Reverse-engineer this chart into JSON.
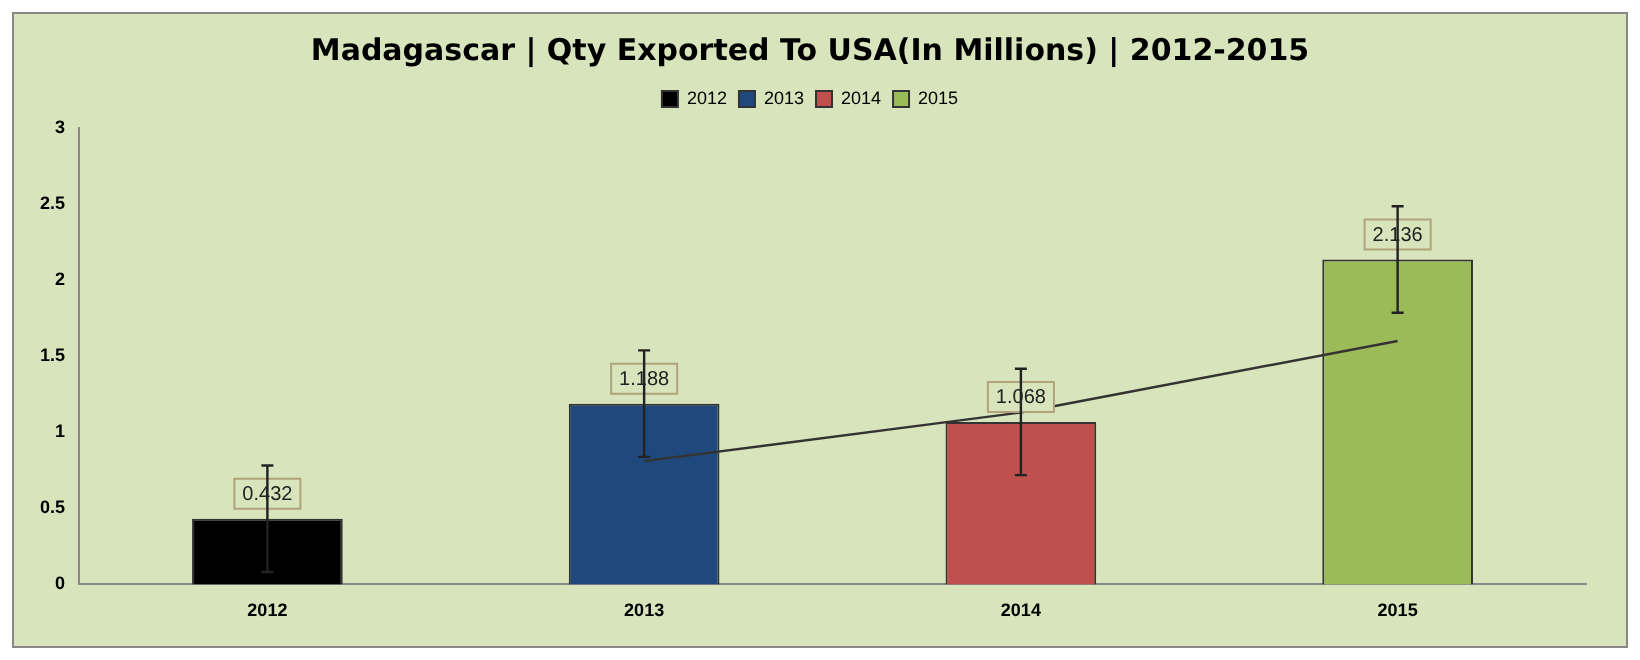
{
  "chart_data": {
    "type": "bar",
    "title": "Madagascar | Qty Exported To USA(In Millions) | 2012-2015",
    "categories": [
      "2012",
      "2013",
      "2014",
      "2015"
    ],
    "series": [
      {
        "name": "2012",
        "color": "#000000",
        "values": [
          0.432,
          null,
          null,
          null
        ],
        "errors": [
          0.35,
          null,
          null,
          null
        ],
        "value_labels": [
          "0.432",
          null,
          null,
          null
        ]
      },
      {
        "name": "2013",
        "color": "#1f497d",
        "values": [
          null,
          1.188,
          null,
          null
        ],
        "errors": [
          null,
          0.35,
          null,
          null
        ],
        "value_labels": [
          null,
          "1.188",
          null,
          null
        ]
      },
      {
        "name": "2014",
        "color": "#c0504d",
        "values": [
          null,
          null,
          1.068,
          null
        ],
        "errors": [
          null,
          null,
          0.35,
          null
        ],
        "value_labels": [
          null,
          null,
          "1.068",
          null
        ]
      },
      {
        "name": "2015",
        "color": "#9bbb59",
        "values": [
          null,
          null,
          null,
          2.136
        ],
        "errors": [
          null,
          null,
          null,
          0.35
        ],
        "value_labels": [
          null,
          null,
          null,
          "2.136"
        ]
      },
      {
        "type": "line",
        "color": "#333333",
        "values": [
          null,
          0.81,
          1.13,
          1.6
        ]
      }
    ],
    "ylim": [
      0,
      3
    ],
    "yticks": [
      0,
      0.5,
      1,
      1.5,
      2,
      2.5,
      3
    ],
    "grid": false,
    "legend": "top",
    "marker": "none",
    "line_style": "solid"
  }
}
